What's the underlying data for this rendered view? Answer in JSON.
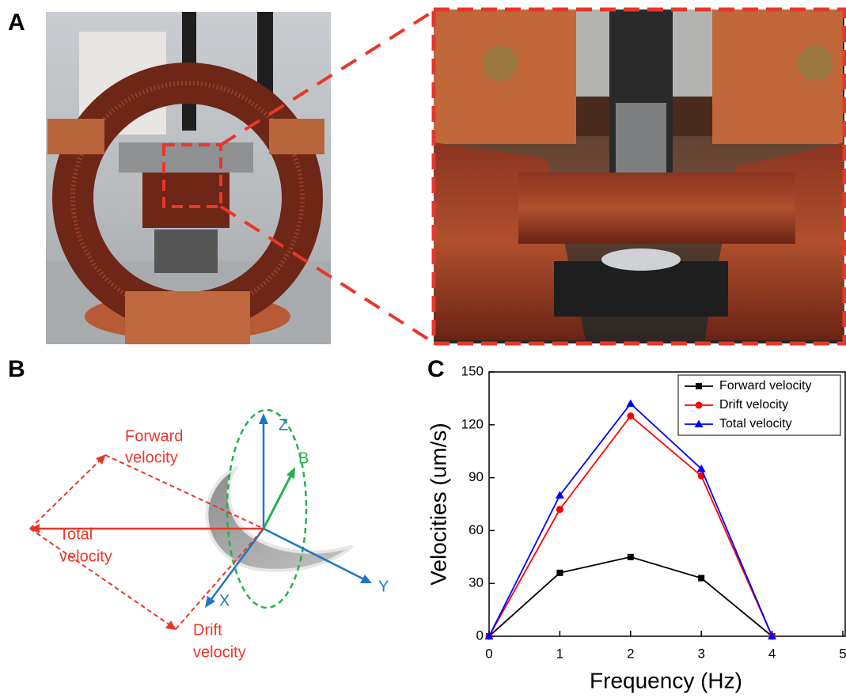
{
  "panels": {
    "a": "A",
    "b": "B",
    "c": "C"
  },
  "diagram": {
    "axis_z": "Z",
    "axis_y": "Y",
    "axis_x": "X",
    "field_b": "B",
    "forward": [
      "Forward",
      "velocity"
    ],
    "total": [
      "Total",
      "velocity"
    ],
    "drift": [
      "Drift",
      "velocity"
    ]
  },
  "chart_data": {
    "type": "line",
    "x_label": "Frequency (Hz)",
    "y_label": "Velocities (um/s)",
    "x": [
      0,
      1,
      2,
      3,
      4
    ],
    "series": [
      {
        "name": "Forward velocity",
        "color": "#000000",
        "marker": "square",
        "values": [
          0,
          36,
          45,
          33,
          0
        ]
      },
      {
        "name": "Drift velocity",
        "color": "#ff0000",
        "marker": "circle",
        "values": [
          0,
          72,
          125,
          91,
          0
        ]
      },
      {
        "name": "Total velocity",
        "color": "#0000ff",
        "marker": "triangle",
        "values": [
          0,
          80,
          132,
          95,
          0
        ]
      }
    ],
    "xlim": [
      0,
      5
    ],
    "xticks": [
      0,
      1,
      2,
      3,
      4,
      5
    ],
    "ylim": [
      0,
      150
    ],
    "yticks": [
      0,
      30,
      60,
      90,
      120,
      150
    ],
    "legend": "top-right"
  }
}
